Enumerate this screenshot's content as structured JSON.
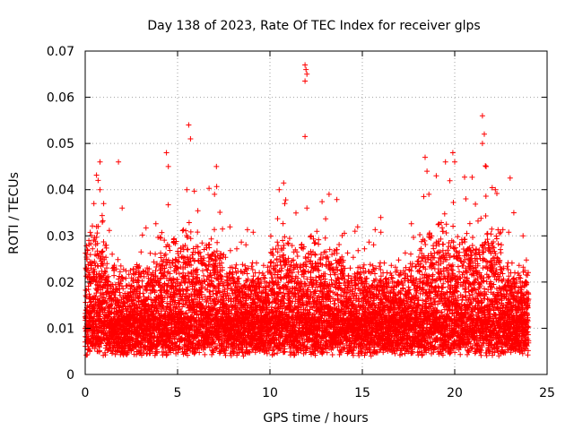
{
  "chart_data": {
    "type": "scatter",
    "title": "Day 138 of 2023, Rate Of TEC Index for receiver glps",
    "xlabel": "GPS time / hours",
    "ylabel": "ROTI / TECUs",
    "xlim": [
      0,
      25
    ],
    "ylim": [
      0,
      0.07
    ],
    "xticks": [
      0,
      5,
      10,
      15,
      20,
      25
    ],
    "xtick_labels": [
      "0",
      "5",
      "10",
      "15",
      "20",
      "25"
    ],
    "yticks": [
      0,
      0.01,
      0.02,
      0.03,
      0.04,
      0.05,
      0.06,
      0.07
    ],
    "ytick_labels": [
      "0",
      "0.01",
      "0.02",
      "0.03",
      "0.04",
      "0.05",
      "0.06",
      "0.07"
    ],
    "grid": true,
    "marker": "+",
    "color": "#ff0000",
    "series": [
      {
        "name": "ROTI",
        "description": "dense band of points between ~0.002 and ~0.02 TECU/min across 0-24 h, with spikes up to ~0.067 near 12 h",
        "x_range": [
          0,
          24
        ],
        "notable_points": [
          {
            "x": 0.1,
            "y": 0.025
          },
          {
            "x": 0.2,
            "y": 0.029
          },
          {
            "x": 0.7,
            "y": 0.042
          },
          {
            "x": 0.8,
            "y": 0.04
          },
          {
            "x": 0.8,
            "y": 0.046
          },
          {
            "x": 1.0,
            "y": 0.037
          },
          {
            "x": 1.8,
            "y": 0.046
          },
          {
            "x": 2.0,
            "y": 0.036
          },
          {
            "x": 4.4,
            "y": 0.048
          },
          {
            "x": 4.5,
            "y": 0.045
          },
          {
            "x": 5.6,
            "y": 0.054
          },
          {
            "x": 5.7,
            "y": 0.051
          },
          {
            "x": 5.5,
            "y": 0.04
          },
          {
            "x": 7.1,
            "y": 0.045
          },
          {
            "x": 7.0,
            "y": 0.039
          },
          {
            "x": 10.5,
            "y": 0.04
          },
          {
            "x": 10.8,
            "y": 0.037
          },
          {
            "x": 11.9,
            "y": 0.067
          },
          {
            "x": 11.95,
            "y": 0.066
          },
          {
            "x": 12.0,
            "y": 0.065
          },
          {
            "x": 11.9,
            "y": 0.0635
          },
          {
            "x": 11.9,
            "y": 0.0515
          },
          {
            "x": 12.0,
            "y": 0.036
          },
          {
            "x": 13.2,
            "y": 0.039
          },
          {
            "x": 14.6,
            "y": 0.031
          },
          {
            "x": 16.0,
            "y": 0.034
          },
          {
            "x": 18.4,
            "y": 0.047
          },
          {
            "x": 18.5,
            "y": 0.044
          },
          {
            "x": 18.6,
            "y": 0.039
          },
          {
            "x": 19.5,
            "y": 0.046
          },
          {
            "x": 19.0,
            "y": 0.043
          },
          {
            "x": 19.9,
            "y": 0.048
          },
          {
            "x": 20.0,
            "y": 0.046
          },
          {
            "x": 20.6,
            "y": 0.038
          },
          {
            "x": 21.5,
            "y": 0.056
          },
          {
            "x": 21.6,
            "y": 0.052
          },
          {
            "x": 21.5,
            "y": 0.05
          },
          {
            "x": 21.7,
            "y": 0.045
          },
          {
            "x": 22.2,
            "y": 0.04
          },
          {
            "x": 23.0,
            "y": 0.0425
          },
          {
            "x": 23.2,
            "y": 0.035
          },
          {
            "x": 23.7,
            "y": 0.03
          }
        ]
      }
    ]
  }
}
